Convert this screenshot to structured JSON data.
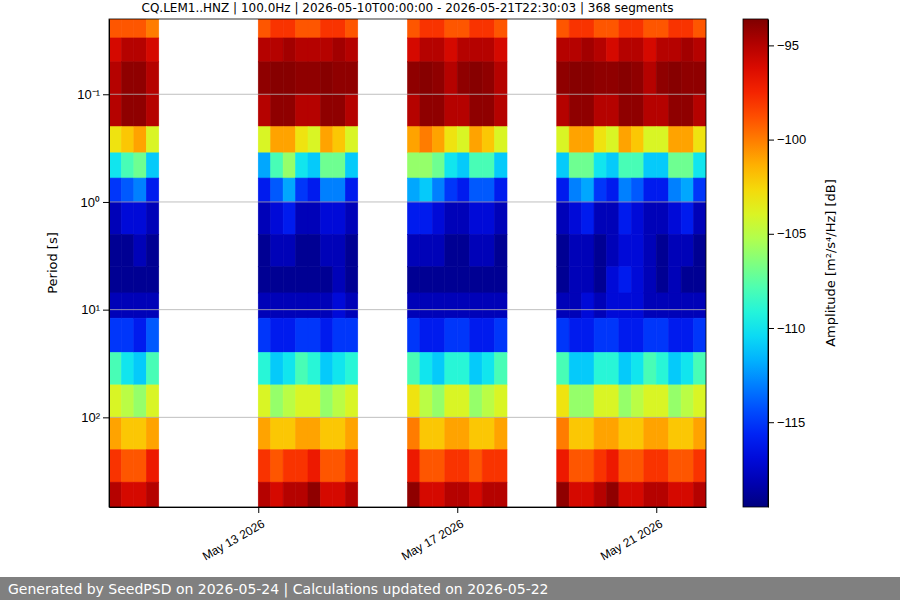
{
  "chart_data": {
    "type": "heatmap",
    "title": "CQ.LEM1..HNZ | 100.0Hz | 2026-05-10T00:00:00 - 2026-05-21T22:30:03 | 368 segments",
    "y_label": "Period [s]",
    "footer": "Generated by SeedPSD on 2026-05-24 | Calculations updated on 2026-05-22",
    "log": "y",
    "grid": "y",
    "color": "jet",
    "xlim": [
      "2026-05-10T00:00",
      "2026-05-22T00:00"
    ],
    "xticks": [
      {
        "value": "2026-05-13T00:00",
        "label": "May 13 2026"
      },
      {
        "value": "2026-05-17T00:00",
        "label": "May 17 2026"
      },
      {
        "value": "2026-05-21T00:00",
        "label": "May 21 2026"
      }
    ],
    "ylim": [
      680,
      0.02
    ],
    "yticks": [
      {
        "value": 0.1,
        "label": "10⁻¹"
      },
      {
        "value": 1,
        "label": "10⁰"
      },
      {
        "value": 10,
        "label": "10¹"
      },
      {
        "value": 100,
        "label": "10²"
      }
    ],
    "x_bins": [
      "2026-05-10T00:00",
      "2026-05-10T06:00",
      "2026-05-10T12:00",
      "2026-05-10T18:00",
      "2026-05-11T00:00",
      "2026-05-11T06:00",
      "2026-05-11T12:00",
      "2026-05-11T18:00",
      "2026-05-12T00:00",
      "2026-05-12T06:00",
      "2026-05-12T12:00",
      "2026-05-12T18:00",
      "2026-05-13T00:00",
      "2026-05-13T06:00",
      "2026-05-13T12:00",
      "2026-05-13T18:00",
      "2026-05-14T00:00",
      "2026-05-14T06:00",
      "2026-05-14T12:00",
      "2026-05-14T18:00",
      "2026-05-15T00:00",
      "2026-05-15T06:00",
      "2026-05-15T12:00",
      "2026-05-15T18:00",
      "2026-05-16T00:00",
      "2026-05-16T06:00",
      "2026-05-16T12:00",
      "2026-05-16T18:00",
      "2026-05-17T00:00",
      "2026-05-17T06:00",
      "2026-05-17T12:00",
      "2026-05-17T18:00",
      "2026-05-18T00:00",
      "2026-05-18T06:00",
      "2026-05-18T12:00",
      "2026-05-18T18:00",
      "2026-05-19T00:00",
      "2026-05-19T06:00",
      "2026-05-19T12:00",
      "2026-05-19T18:00",
      "2026-05-20T00:00",
      "2026-05-20T06:00",
      "2026-05-20T12:00",
      "2026-05-20T18:00",
      "2026-05-21T00:00",
      "2026-05-21T06:00",
      "2026-05-21T12:00",
      "2026-05-21T18:00",
      "2026-05-22T00:00"
    ],
    "y_bins": [
      0.02,
      0.03,
      0.05,
      0.1,
      0.2,
      0.35,
      0.6,
      1,
      2,
      4,
      7,
      12,
      25,
      50,
      100,
      200,
      400,
      680
    ],
    "z": [
      [
        -99,
        -96,
        -95,
        -95,
        -103,
        -110,
        -115,
        -118,
        -119,
        -119,
        -118,
        -115,
        -108,
        -104,
        -101,
        -98,
        -95
      ],
      [
        -99,
        -95,
        -94,
        -94,
        -102,
        -108,
        -114,
        -117,
        -119,
        -119,
        -118,
        -115,
        -110,
        -105,
        -102,
        -99,
        -96
      ],
      [
        -99,
        -95,
        -94,
        -94,
        -101,
        -107,
        -113,
        -117,
        -118,
        -119,
        -118,
        -116,
        -111,
        -106,
        -102,
        -99,
        -96
      ],
      [
        -100,
        -96,
        -95,
        -95,
        -104,
        -111,
        -116,
        -118,
        -119,
        -119,
        -118,
        -114,
        -108,
        -104,
        -101,
        -97,
        -95
      ],
      null,
      null,
      null,
      null,
      null,
      null,
      null,
      null,
      [
        -99,
        -95,
        -94,
        -95,
        -104,
        -112,
        -116,
        -118,
        -119,
        -119,
        -118,
        -115,
        -109,
        -104,
        -101,
        -98,
        -95
      ],
      [
        -98,
        -95,
        -93.8,
        -94,
        -101,
        -108,
        -114,
        -117,
        -118,
        -119,
        -118,
        -116,
        -111,
        -106,
        -102,
        -99,
        -96
      ],
      [
        -98,
        -94.5,
        -93.8,
        -94,
        -101,
        -106,
        -112,
        -116,
        -118,
        -119,
        -118,
        -116,
        -110,
        -105,
        -102,
        -98,
        -95
      ],
      [
        -99,
        -95,
        -94,
        -95,
        -103,
        -110,
        -115,
        -118,
        -119,
        -119,
        -118,
        -115,
        -108,
        -104,
        -101,
        -98,
        -95
      ],
      [
        -99,
        -95,
        -94,
        -95,
        -104,
        -111,
        -116,
        -118,
        -119,
        -119,
        -118,
        -115,
        -109,
        -104,
        -101,
        -97,
        -94
      ],
      [
        -98,
        -95,
        -93.8,
        -94,
        -101,
        -107,
        -113,
        -117,
        -118,
        -119,
        -118,
        -116,
        -111,
        -106,
        -102,
        -99,
        -96
      ],
      [
        -98,
        -94.5,
        -94,
        -94,
        -102,
        -107,
        -113,
        -117,
        -118,
        -118,
        -117,
        -115,
        -110,
        -105,
        -102,
        -99,
        -96
      ],
      [
        -99,
        -95,
        -94,
        -95,
        -104,
        -111,
        -116,
        -118,
        -119,
        -119,
        -118,
        -115,
        -109,
        -104,
        -101,
        -98,
        -95
      ],
      null,
      null,
      null,
      null,
      [
        -99,
        -96,
        -94,
        -95,
        -101,
        -106,
        -112,
        -116,
        -118,
        -119,
        -118,
        -115,
        -108,
        -103,
        -100,
        -97,
        -94
      ],
      [
        -98,
        -95,
        -93.8,
        -94,
        -100,
        -106,
        -111,
        -116,
        -118,
        -119,
        -118,
        -116,
        -110,
        -105,
        -102,
        -99,
        -96
      ],
      [
        -98,
        -95,
        -94,
        -94,
        -101,
        -107,
        -113,
        -117,
        -118,
        -119,
        -118,
        -116,
        -111,
        -106,
        -102,
        -99,
        -96
      ],
      [
        -99,
        -96,
        -95,
        -95,
        -103,
        -110,
        -115,
        -118,
        -119,
        -119,
        -118,
        -115,
        -109,
        -104,
        -101,
        -98,
        -95
      ],
      [
        -99,
        -95,
        -94,
        -95,
        -104,
        -111,
        -116,
        -118,
        -119,
        -119,
        -118,
        -115,
        -109,
        -104,
        -101,
        -98,
        -95
      ],
      [
        -98,
        -95,
        -93.8,
        -94,
        -101,
        -108,
        -114,
        -117,
        -118,
        -119,
        -118,
        -116,
        -111,
        -106,
        -102,
        -99,
        -96
      ],
      [
        -98,
        -95,
        -94,
        -94,
        -102,
        -108,
        -114,
        -117,
        -118,
        -119,
        -118,
        -116,
        -110,
        -105,
        -102,
        -98,
        -95
      ],
      [
        -99,
        -96,
        -95,
        -95,
        -104,
        -111,
        -116,
        -118,
        -119,
        -119,
        -118,
        -115,
        -108,
        -104,
        -101,
        -98,
        -95
      ],
      null,
      null,
      null,
      null,
      [
        -99,
        -95,
        -94,
        -95,
        -104,
        -111,
        -116,
        -118,
        -119,
        -119,
        -118,
        -115,
        -108,
        -103,
        -100,
        -97,
        -94
      ],
      [
        -98,
        -95,
        -93.8,
        -94,
        -101,
        -107,
        -113,
        -117,
        -118,
        -118,
        -118,
        -116,
        -111,
        -106,
        -102,
        -99,
        -96
      ],
      [
        -98,
        -94.5,
        -93.8,
        -94,
        -101,
        -107,
        -112,
        -116,
        -118,
        -118,
        -117,
        -116,
        -111,
        -106,
        -102,
        -99,
        -96
      ],
      [
        -99,
        -95,
        -94,
        -95,
        -103,
        -110,
        -115,
        -118,
        -119,
        -119,
        -118,
        -115,
        -109,
        -104,
        -101,
        -98,
        -95
      ],
      [
        -99,
        -96,
        -94,
        -95,
        -104,
        -111,
        -116,
        -118,
        -118,
        -117,
        -117,
        -115,
        -109,
        -104,
        -101,
        -97,
        -94
      ],
      [
        -98,
        -95,
        -93.8,
        -94,
        -101,
        -108,
        -113,
        -116,
        -117,
        -116,
        -117,
        -116,
        -111,
        -106,
        -102,
        -99,
        -96
      ],
      [
        -98,
        -95,
        -94,
        -94,
        -102,
        -108,
        -114,
        -117,
        -117,
        -117,
        -117,
        -116,
        -110,
        -105,
        -102,
        -99,
        -96
      ],
      [
        -99,
        -96,
        -95,
        -95,
        -104,
        -111,
        -116,
        -118,
        -118,
        -118,
        -118,
        -115,
        -108,
        -104,
        -101,
        -98,
        -95
      ],
      [
        -99,
        -95,
        -94,
        -95,
        -104,
        -111,
        -116,
        -118,
        -119,
        -119,
        -118,
        -115,
        -109,
        -104,
        -101,
        -98,
        -95
      ],
      [
        -98,
        -95,
        -93.8,
        -94,
        -101,
        -107,
        -113,
        -117,
        -118,
        -118,
        -118,
        -116,
        -111,
        -106,
        -102,
        -99,
        -96
      ],
      [
        -98,
        -94.5,
        -94,
        -94,
        -101,
        -107,
        -112,
        -116,
        -118,
        -119,
        -118,
        -116,
        -110,
        -105,
        -102,
        -99,
        -96
      ],
      [
        -99,
        -95,
        -94,
        -95,
        -103,
        -110,
        -115,
        -118,
        -119,
        -119,
        -118,
        -115,
        -108,
        -104,
        -101,
        -98,
        -95
      ]
    ],
    "colorbar": {
      "label": "Amplitude [m²/s⁴/Hz] [dB]",
      "lim": [
        -119.5,
        -93.6
      ],
      "ticks": [
        {
          "value": -95,
          "label": "−95"
        },
        {
          "value": -100,
          "label": "−100"
        },
        {
          "value": -105,
          "label": "−105"
        },
        {
          "value": -110,
          "label": "−110"
        },
        {
          "value": -115,
          "label": "−115"
        }
      ]
    }
  }
}
